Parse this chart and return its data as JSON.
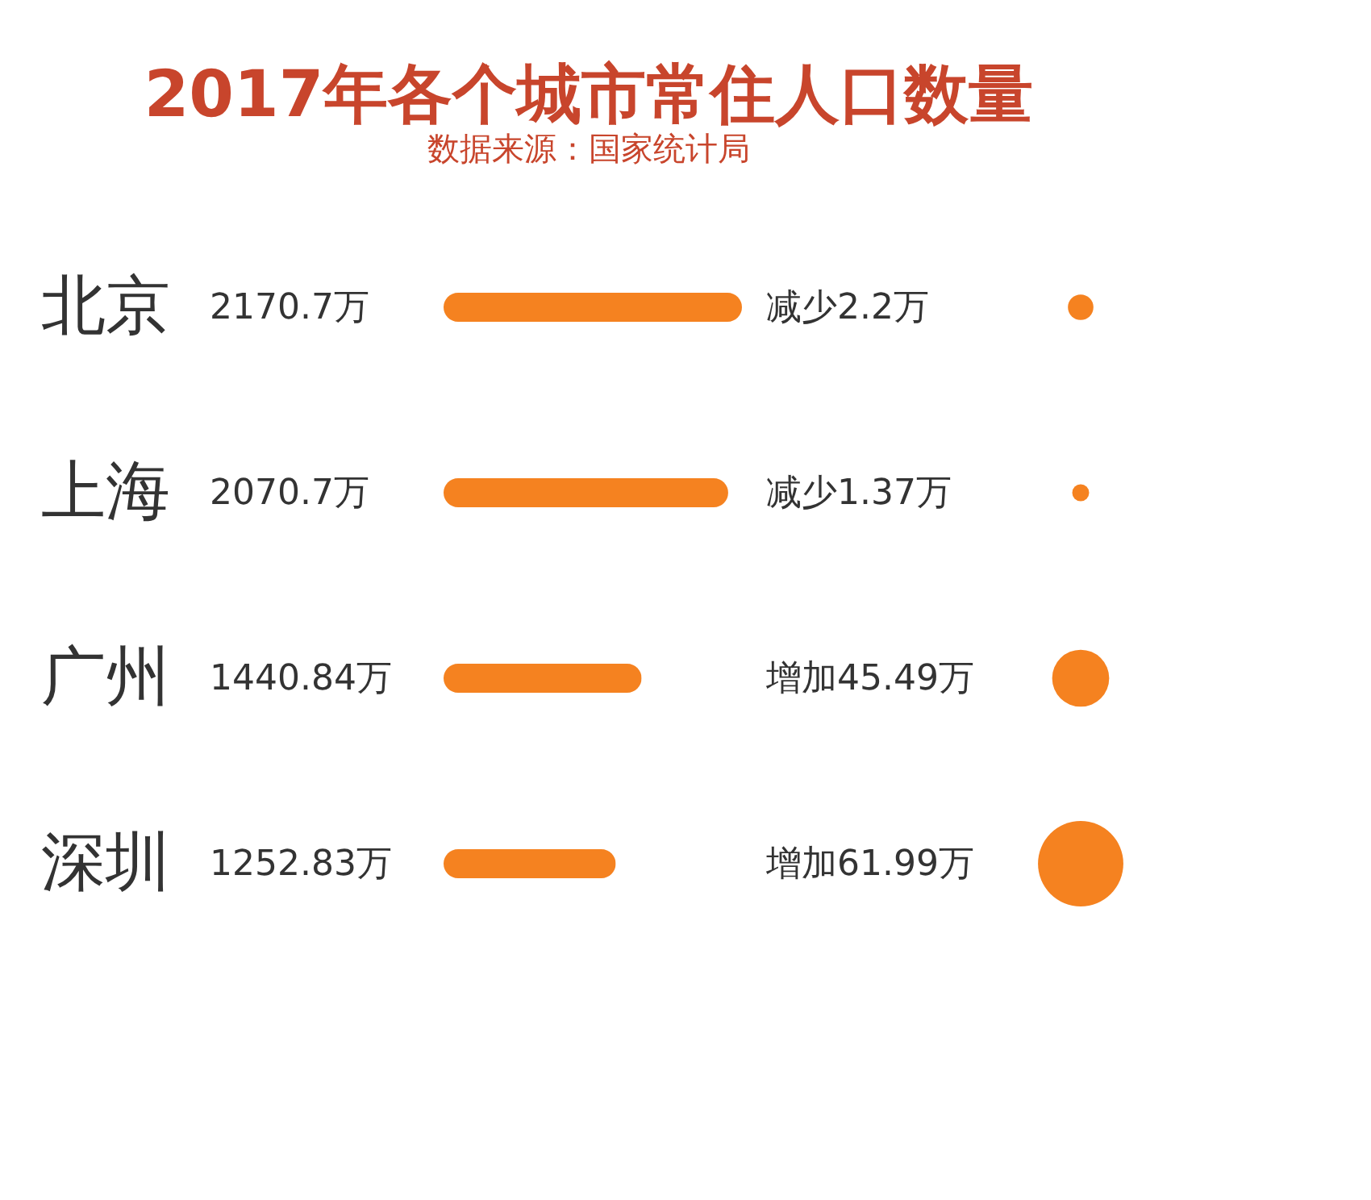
{
  "chart_data": [
    {
      "type": "bar",
      "orientation": "horizontal",
      "title": "2017年各个城市常住人口数量",
      "subtitle": "数据来源：国家统计局",
      "categories": [
        "北京",
        "上海",
        "广州",
        "深圳"
      ],
      "values": [
        2170.7,
        2070.7,
        1440.84,
        1252.83
      ],
      "value_labels": [
        "2170.7万",
        "2070.7万",
        "1440.84万",
        "1252.83万"
      ],
      "color": "#f58220"
    },
    {
      "type": "other",
      "annotations": [
        "减少2.2万",
        "减少1.37万",
        "增加45.49万",
        "增加61.99万"
      ]
    }
  ]
}
